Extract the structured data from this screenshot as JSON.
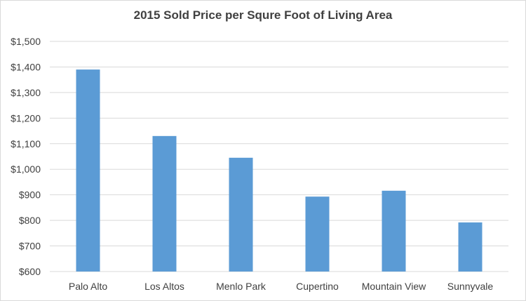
{
  "chart_data": {
    "type": "bar",
    "title": "2015 Sold Price per Squre Foot of Living Area",
    "xlabel": "",
    "ylabel": "",
    "categories": [
      "Palo Alto",
      "Los Altos",
      "Menlo Park",
      "Cupertino",
      "Mountain View",
      "Sunnyvale"
    ],
    "values": [
      1390,
      1130,
      1045,
      893,
      916,
      792
    ],
    "ylim": [
      600,
      1500
    ],
    "ytick_step": 100,
    "ytick_labels": [
      "$600",
      "$700",
      "$800",
      "$900",
      "$1,000",
      "$1,100",
      "$1,200",
      "$1,300",
      "$1,400",
      "$1,500"
    ],
    "grid": true,
    "legend": "none",
    "bar_color": "#5b9bd5",
    "grid_color": "#d9d9d9"
  }
}
